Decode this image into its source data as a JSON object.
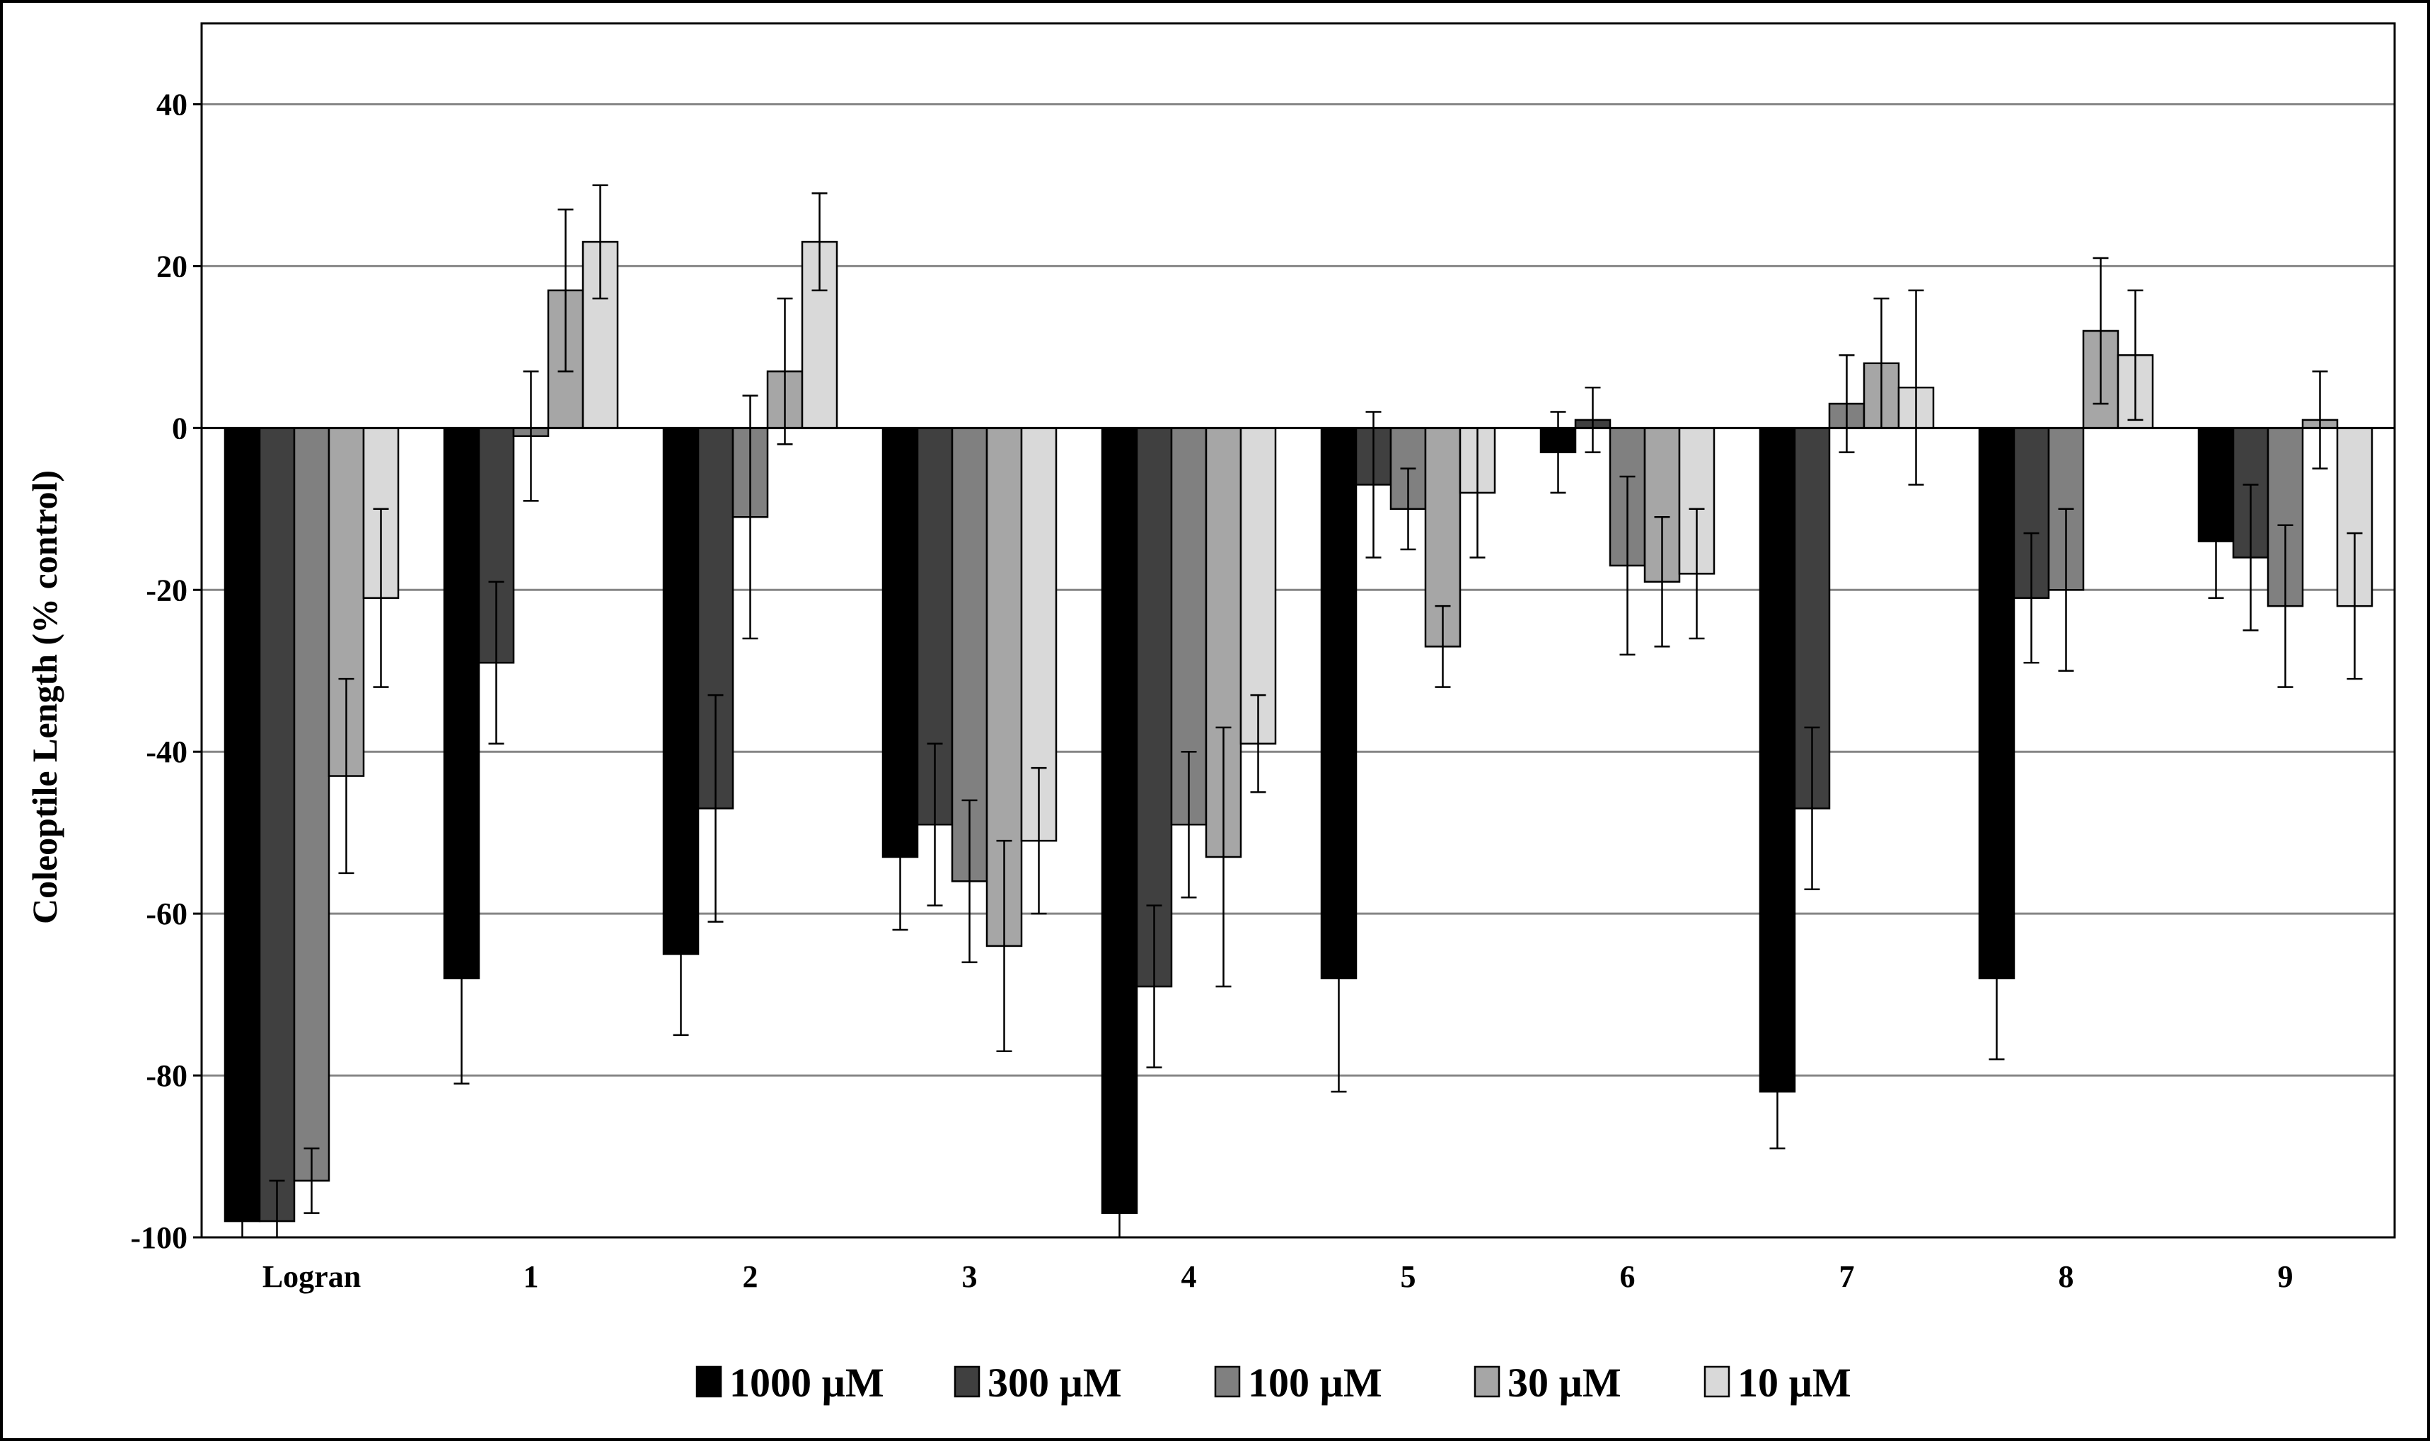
{
  "chart_data": {
    "type": "bar",
    "ylabel": "Coleoptile Length (% control)",
    "xlabel": "",
    "ylim": [
      -100,
      50
    ],
    "yticks": [
      40,
      20,
      0,
      -20,
      -40,
      -60,
      -80,
      -100
    ],
    "grid": true,
    "legend_position": "bottom",
    "categories": [
      "Logran",
      "1",
      "2",
      "3",
      "4",
      "5",
      "6",
      "7",
      "8",
      "9"
    ],
    "series": [
      {
        "name": "1000 µM",
        "color": "#000000",
        "values": [
          -98,
          -68,
          -65,
          -53,
          -97,
          -68,
          -3,
          -82,
          -68,
          -14
        ],
        "errors": [
          6,
          13,
          10,
          9,
          8,
          14,
          5,
          7,
          10,
          7
        ]
      },
      {
        "name": "300  µM",
        "color": "#404040",
        "values": [
          -98,
          -29,
          -47,
          -49,
          -69,
          -7,
          1,
          -47,
          -21,
          -16
        ],
        "errors": [
          5,
          10,
          14,
          10,
          10,
          9,
          4,
          10,
          8,
          9
        ]
      },
      {
        "name": "100  µM",
        "color": "#808080",
        "values": [
          -93,
          -1,
          -11,
          -56,
          -49,
          -10,
          -17,
          3,
          -20,
          -22
        ],
        "errors": [
          4,
          8,
          15,
          10,
          9,
          5,
          11,
          6,
          10,
          10
        ]
      },
      {
        "name": "30  µM",
        "color": "#a6a6a6",
        "values": [
          -43,
          17,
          7,
          -64,
          -53,
          -27,
          -19,
          8,
          12,
          1
        ],
        "errors": [
          12,
          10,
          9,
          13,
          16,
          5,
          8,
          8,
          9,
          6
        ]
      },
      {
        "name": "10  µM",
        "color": "#d9d9d9",
        "values": [
          -21,
          23,
          23,
          -51,
          -39,
          -8,
          -18,
          5,
          9,
          -22
        ],
        "errors": [
          11,
          7,
          6,
          9,
          6,
          8,
          8,
          12,
          8,
          9
        ]
      }
    ]
  }
}
